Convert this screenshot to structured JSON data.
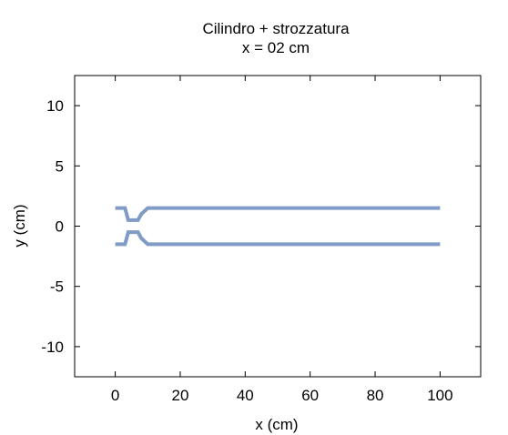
{
  "chart_data": {
    "type": "line",
    "title": "Cilindro + strozzatura",
    "subtitle": "x = 02 cm",
    "xlabel": "x (cm)",
    "ylabel": "y (cm)",
    "xlim": [
      -12.5,
      112.5
    ],
    "ylim": [
      -12.5,
      12.5
    ],
    "x_ticks": [
      0,
      20,
      40,
      60,
      80,
      100
    ],
    "y_ticks": [
      10,
      5,
      0,
      -5,
      -10
    ],
    "x_tick_labels": [
      "0",
      "20",
      "40",
      "60",
      "80",
      "100"
    ],
    "y_tick_labels": [
      "10",
      "5",
      "0",
      "-5",
      "-10"
    ],
    "grid": false,
    "line_color": "#7f9bc6",
    "series": [
      {
        "x": [
          0,
          3,
          4,
          7,
          8,
          10,
          100
        ],
        "y": [
          1.5,
          1.5,
          0.5,
          0.5,
          1.0,
          1.5,
          1.5
        ]
      },
      {
        "x": [
          0,
          3,
          4,
          7,
          8,
          10,
          100
        ],
        "y": [
          -1.5,
          -1.5,
          -0.5,
          -0.5,
          -1.0,
          -1.5,
          -1.5
        ]
      }
    ]
  }
}
